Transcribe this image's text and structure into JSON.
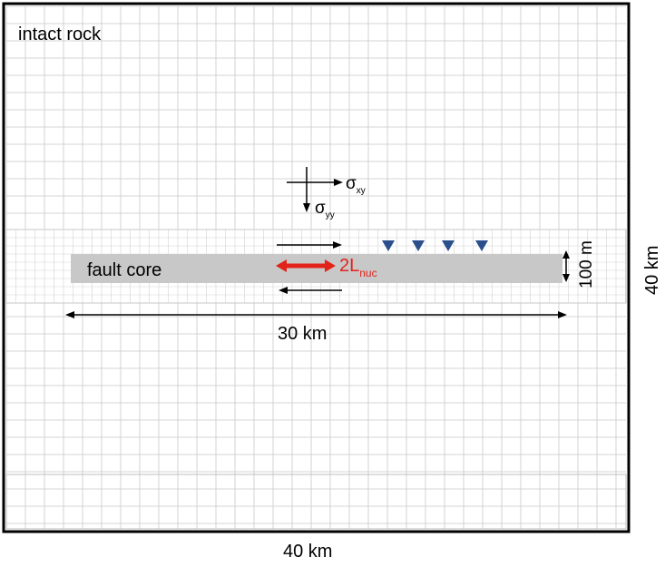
{
  "labels": {
    "domain": "intact rock",
    "fault": "fault core",
    "sigma_xy_symbol": "σ",
    "sigma_xy_sub": "xy",
    "sigma_yy_symbol": "σ",
    "sigma_yy_sub": "yy",
    "nucleation_main": "2L",
    "nucleation_sub": "nuc",
    "fault_length": "30 km",
    "fault_zone_width": "100 m",
    "domain_height": "40 km",
    "domain_width": "40 km"
  },
  "colors": {
    "frame": "#000000",
    "grid": "#c8c8c8",
    "fault_core": "#c8c8c8",
    "nucleation": "#e2231a",
    "stations": "#2b4f8c"
  },
  "stations_count": 4
}
